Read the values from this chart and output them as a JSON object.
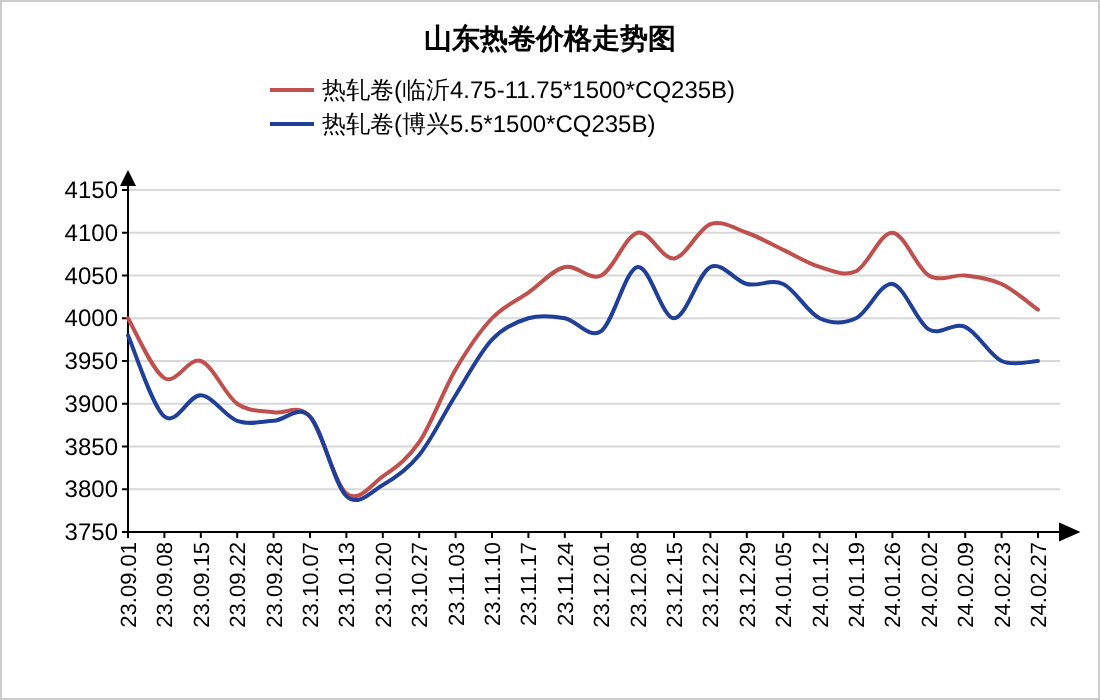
{
  "chart_data": {
    "type": "line",
    "title": "山东热卷价格走势图",
    "categories": [
      "23.09.01",
      "23.09.08",
      "23.09.15",
      "23.09.22",
      "23.09.28",
      "23.10.07",
      "23.10.13",
      "23.10.20",
      "23.10.27",
      "23.11.03",
      "23.11.10",
      "23.11.17",
      "23.11.24",
      "23.12.01",
      "23.12.08",
      "23.12.15",
      "23.12.22",
      "23.12.29",
      "24.01.05",
      "24.01.12",
      "24.01.19",
      "24.01.26",
      "24.02.02",
      "24.02.09",
      "24.02.23",
      "24.02.27"
    ],
    "series": [
      {
        "name": "热轧卷(临沂4.75-11.75*1500*CQ235B)",
        "color": "#c0504d",
        "values": [
          4000,
          3930,
          3950,
          3900,
          3890,
          3885,
          3795,
          3815,
          3855,
          3940,
          4000,
          4030,
          4060,
          4050,
          4100,
          4070,
          4110,
          4100,
          4080,
          4060,
          4055,
          4100,
          4050,
          4050,
          4040,
          4010
        ]
      },
      {
        "name": "热轧卷(博兴5.5*1500*CQ235B)",
        "color": "#1f3f99",
        "values": [
          3980,
          3885,
          3910,
          3880,
          3880,
          3885,
          3792,
          3805,
          3840,
          3910,
          3975,
          4000,
          4000,
          3985,
          4060,
          4000,
          4060,
          4040,
          4040,
          4000,
          4000,
          4040,
          3987,
          3990,
          3950,
          3950
        ]
      }
    ],
    "ylim": [
      3750,
      4150
    ],
    "yticks": [
      3750,
      3800,
      3850,
      3900,
      3950,
      4000,
      4050,
      4100,
      4150
    ],
    "grid": "y",
    "legend": "top"
  }
}
